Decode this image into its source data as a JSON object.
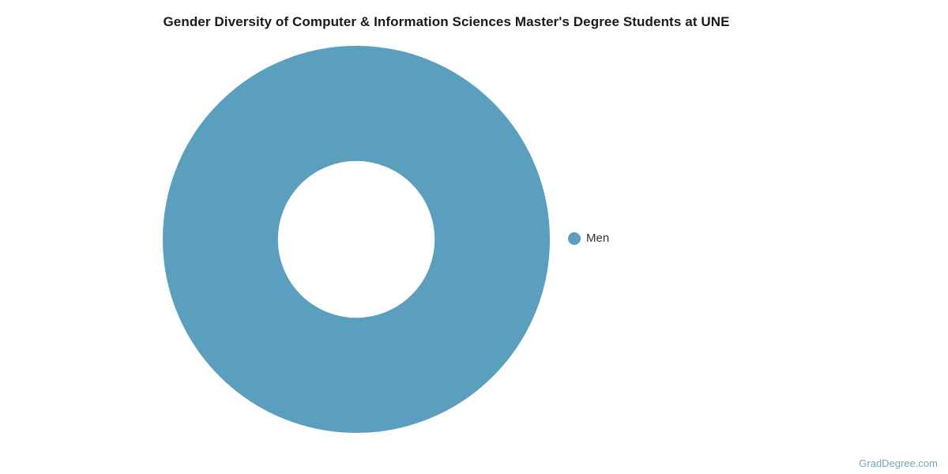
{
  "page": {
    "title": "Gender Diversity of Computer & Information Sciences Master's Degree Students at UNE",
    "watermark": "GradDegree.com"
  },
  "chart_data": {
    "type": "pie",
    "subtype": "donut",
    "title": "Gender Diversity of Computer & Information Sciences Master's Degree Students at UNE",
    "categories": [
      "Men"
    ],
    "values": [
      100
    ],
    "colors": [
      "#5b9fbe"
    ],
    "units": "percent",
    "inner_radius_ratio": 0.405,
    "legend": {
      "position": "right",
      "entries": [
        {
          "label": "Men",
          "color": "#5b9fbe"
        }
      ]
    }
  },
  "style": {
    "background": "#ffffff",
    "title_color": "#1a1a1a",
    "legend_text_color": "#333333",
    "watermark_color": "#74a7c1"
  }
}
